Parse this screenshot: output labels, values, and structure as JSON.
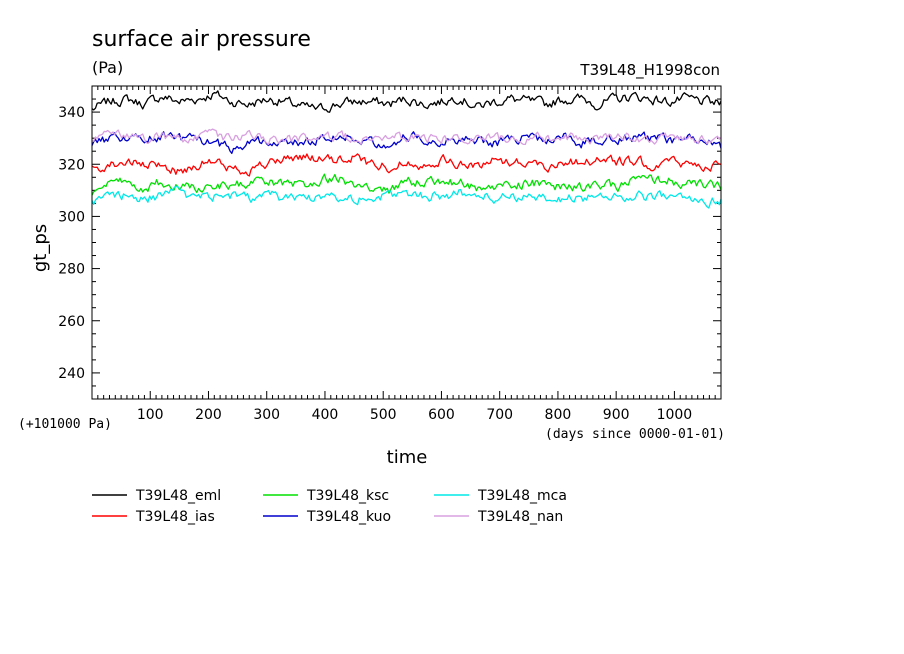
{
  "chart_data": {
    "type": "line",
    "title": "surface air pressure",
    "unit_label": "(Pa)",
    "experiment_label": "T39L48_H1998con",
    "xlabel": "time",
    "x_unit_note": "(days since 0000-01-01)",
    "ylabel": "gt_ps",
    "y_offset_note": "(+101000 Pa)",
    "xlim": [
      0,
      1080
    ],
    "ylim": [
      230,
      350
    ],
    "xticks": [
      100,
      200,
      300,
      400,
      500,
      600,
      700,
      800,
      900,
      1000
    ],
    "yticks": [
      240,
      260,
      280,
      300,
      320,
      340
    ],
    "grid": false,
    "legend_position": "bottom",
    "x": [
      0,
      30,
      60,
      90,
      120,
      150,
      180,
      210,
      240,
      270,
      300,
      330,
      360,
      390,
      420,
      450,
      480,
      510,
      540,
      570,
      600,
      630,
      660,
      690,
      720,
      750,
      780,
      810,
      840,
      870,
      900,
      930,
      960,
      990,
      1020,
      1050,
      1080
    ],
    "series": [
      {
        "name": "T39L48_eml",
        "color": "#000000",
        "values": [
          341,
          344,
          345,
          343,
          346,
          344,
          345,
          347,
          344,
          343,
          345,
          344,
          342,
          341,
          343,
          344,
          344,
          343,
          345,
          343,
          344,
          346,
          342,
          344,
          345,
          344,
          343,
          345,
          345,
          343,
          345,
          346,
          345,
          344,
          345,
          344,
          343
        ]
      },
      {
        "name": "T39L48_ias",
        "color": "#ff0000",
        "values": [
          318,
          320,
          321,
          319,
          320,
          317,
          320,
          321,
          318,
          318,
          320,
          322,
          323,
          322,
          321,
          323,
          320,
          319,
          321,
          320,
          322,
          320,
          319,
          322,
          321,
          321,
          319,
          321,
          321,
          322,
          321,
          321,
          320,
          321,
          320,
          320,
          319
        ]
      },
      {
        "name": "T39L48_ksc",
        "color": "#00e000",
        "values": [
          309,
          312,
          313,
          311,
          313,
          312,
          311,
          312,
          311,
          313,
          313,
          312,
          312,
          314,
          315,
          312,
          310,
          310,
          313,
          314,
          313,
          313,
          311,
          311,
          312,
          313,
          312,
          311,
          311,
          312,
          311,
          314,
          314,
          314,
          312,
          312,
          311
        ]
      },
      {
        "name": "T39L48_kuo",
        "color": "#0000cc",
        "values": [
          327,
          330,
          331,
          329,
          331,
          330,
          329,
          328,
          326,
          329,
          329,
          328,
          328,
          330,
          331,
          330,
          329,
          328,
          331,
          330,
          329,
          330,
          329,
          328,
          330,
          330,
          329,
          331,
          328,
          329,
          330,
          330,
          330,
          329,
          329,
          330,
          327
        ]
      },
      {
        "name": "T39L48_mca",
        "color": "#00e8e8",
        "values": [
          305,
          308,
          308,
          307,
          308,
          309,
          307,
          308,
          308,
          307,
          308,
          307,
          307,
          308,
          308,
          307,
          307,
          308,
          309,
          308,
          308,
          309,
          308,
          307,
          308,
          307,
          306,
          307,
          307,
          308,
          308,
          307,
          308,
          307,
          307,
          306,
          306
        ]
      },
      {
        "name": "T39L48_nan",
        "color": "#d8a0e0",
        "values": [
          330,
          331,
          331,
          330,
          331,
          330,
          330,
          331,
          330,
          331,
          330,
          329,
          330,
          330,
          330,
          330,
          330,
          330,
          330,
          330,
          330,
          330,
          330,
          330,
          330,
          330,
          330,
          330,
          330,
          330,
          331,
          330,
          330,
          330,
          330,
          330,
          329
        ]
      }
    ]
  }
}
